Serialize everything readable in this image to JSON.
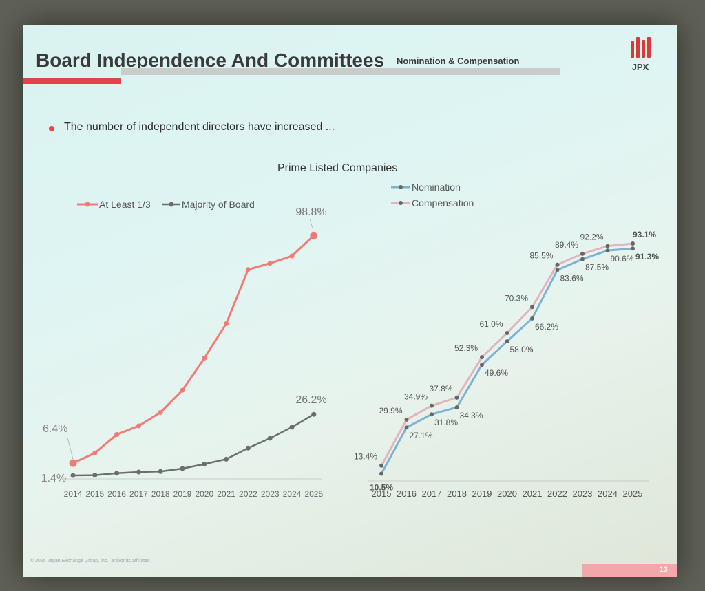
{
  "title": "Board Independence And Committees",
  "subtitle": "Nomination & Compensation",
  "logo_text": "JPX",
  "bullet": "The number of independent directors have increased ...",
  "prime_title": "Prime Listed Companies",
  "copyright": "© 2025 Japan Exchange Group, Inc., and/or its affiliates",
  "page_number": "13",
  "colors": {
    "accent_red": "#e0434b",
    "at_least_line": "#f47a78",
    "majority_line": "#6d6d6d",
    "nomination_line": "#7fb1d2",
    "compensation_line": "#e4b4bd"
  },
  "chart_data": [
    {
      "type": "line",
      "categories": [
        "2014",
        "2015",
        "2016",
        "2017",
        "2018",
        "2019",
        "2020",
        "2021",
        "2022",
        "2023",
        "2024",
        "2025"
      ],
      "series": [
        {
          "name": "At Least 1/3",
          "values": [
            6.4,
            10.5,
            18.0,
            21.5,
            27.0,
            36.0,
            49.0,
            63.0,
            85.0,
            87.5,
            90.5,
            98.8
          ]
        },
        {
          "name": "Majority of Board",
          "values": [
            1.4,
            1.5,
            2.3,
            2.8,
            3.0,
            4.2,
            6.0,
            8.0,
            12.5,
            16.5,
            21.0,
            26.2
          ]
        }
      ],
      "labels": {
        "start_a": "6.4%",
        "start_b": "1.4%",
        "end_a": "98.8%",
        "end_b": "26.2%"
      },
      "ylim": [
        0,
        100
      ],
      "legend": "top-left"
    },
    {
      "type": "line",
      "categories": [
        "2015",
        "2016",
        "2017",
        "2018",
        "2019",
        "2020",
        "2021",
        "2022",
        "2023",
        "2024",
        "2025"
      ],
      "series": [
        {
          "name": "Nomination",
          "values": [
            10.5,
            27.1,
            31.8,
            34.3,
            49.6,
            58.0,
            66.2,
            83.6,
            87.5,
            90.6,
            91.3
          ]
        },
        {
          "name": "Compensation",
          "values": [
            13.4,
            29.9,
            34.9,
            37.8,
            52.3,
            61.0,
            70.3,
            85.5,
            89.4,
            92.2,
            93.1
          ]
        }
      ],
      "ylim": [
        0,
        100
      ],
      "legend": "top-left"
    }
  ]
}
